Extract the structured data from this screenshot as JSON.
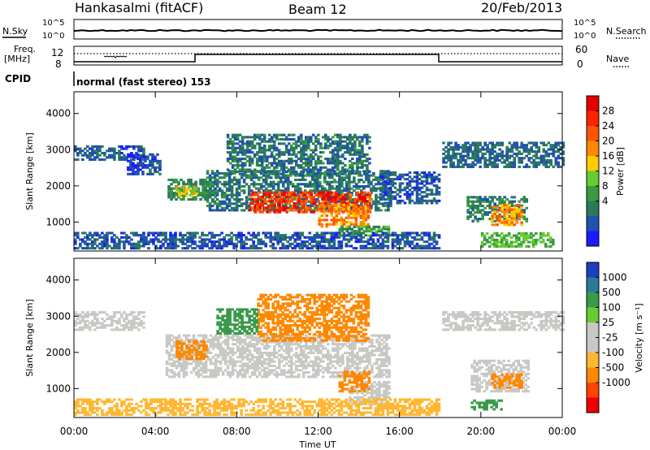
{
  "header": {
    "station": "Hankasalmi (fitACF)",
    "beam": "Beam 12",
    "date": "20/Feb/2013"
  },
  "strips": {
    "nsky_label": "N.Sky",
    "nsearch_label": "N.Search",
    "freq_label_line1": "Freq.",
    "freq_label_line2": "[MHz]",
    "nave_label": "Nave",
    "cpid_label": "CPID",
    "cpid_value": "normal (fast stereo) 153",
    "noise_ticks": [
      "10^5",
      "10^0"
    ],
    "freq_ticks": [
      "12",
      "8"
    ],
    "nave_ticks": [
      "60",
      "0"
    ]
  },
  "colors": {
    "power_scale": [
      "#1a1aff",
      "#2050b0",
      "#2a7a5a",
      "#3a9a40",
      "#66cc33",
      "#ffcc00",
      "#ff8800",
      "#ff5500",
      "#ff2200",
      "#e60000"
    ],
    "velocity_scale": [
      "#1b3fbf",
      "#2c7a9a",
      "#3a9a4a",
      "#66cc33",
      "#c8c8c4",
      "#c8c8c4",
      "#ffb733",
      "#ff8800",
      "#ff4400",
      "#ee0000"
    ],
    "ground_scatter": "#c8c8c4"
  },
  "chart_data": [
    {
      "type": "heatmap",
      "panel": "power",
      "ylabel": "Slant Range [km]",
      "xlabel": "Time UT",
      "x_ticks": [
        "00:00",
        "04:00",
        "08:00",
        "12:00",
        "16:00",
        "20:00",
        "00:00"
      ],
      "y_ticks": [
        1000,
        2000,
        3000,
        4000
      ],
      "ylim": [
        200,
        4600
      ],
      "xlim_hours": [
        0,
        24
      ],
      "colorbar_label": "Power [dB]",
      "colorbar_ticks": [
        4,
        8,
        12,
        16,
        20,
        24,
        28
      ],
      "data_gap_hours": [
        17.95,
        18.05
      ],
      "regions": [
        {
          "t0": 0.0,
          "t1": 3.4,
          "r0": 2700,
          "r1": 3100,
          "v": 7
        },
        {
          "t0": 2.6,
          "t1": 4.2,
          "r0": 2300,
          "r1": 2900,
          "v": 6
        },
        {
          "t0": 4.6,
          "t1": 7.0,
          "r0": 1600,
          "r1": 2200,
          "v": 11
        },
        {
          "t0": 5.0,
          "t1": 6.0,
          "r0": 1700,
          "r1": 2000,
          "v": 18
        },
        {
          "t0": 6.5,
          "t1": 15.5,
          "r0": 1300,
          "r1": 2400,
          "v": 9
        },
        {
          "t0": 8.6,
          "t1": 14.5,
          "r0": 1250,
          "r1": 1800,
          "v": 27
        },
        {
          "t0": 12.0,
          "t1": 14.5,
          "r0": 850,
          "r1": 1500,
          "v": 22
        },
        {
          "t0": 13.0,
          "t1": 15.5,
          "r0": 600,
          "r1": 900,
          "v": 12
        },
        {
          "t0": 7.5,
          "t1": 14.5,
          "r0": 2300,
          "r1": 3400,
          "v": 9
        },
        {
          "t0": 15.0,
          "t1": 17.9,
          "r0": 1500,
          "r1": 2400,
          "v": 7
        },
        {
          "t0": 18.1,
          "t1": 24.0,
          "r0": 2500,
          "r1": 3200,
          "v": 8
        },
        {
          "t0": 19.3,
          "t1": 22.3,
          "r0": 1000,
          "r1": 1700,
          "v": 10
        },
        {
          "t0": 20.5,
          "t1": 22.0,
          "r0": 900,
          "r1": 1500,
          "v": 21
        },
        {
          "t0": 20.0,
          "t1": 23.5,
          "r0": 300,
          "r1": 700,
          "v": 14
        },
        {
          "t0": 0.0,
          "t1": 17.9,
          "r0": 250,
          "r1": 700,
          "v": 7
        }
      ]
    },
    {
      "type": "heatmap",
      "panel": "velocity",
      "ylabel": "Slant Range [km]",
      "xlabel": "Time UT",
      "x_ticks": [
        "00:00",
        "04:00",
        "08:00",
        "12:00",
        "16:00",
        "20:00",
        "00:00"
      ],
      "y_ticks": [
        1000,
        2000,
        3000,
        4000
      ],
      "ylim": [
        200,
        4600
      ],
      "xlim_hours": [
        0,
        24
      ],
      "colorbar_label": "Velocity [m s⁻¹]",
      "colorbar_ticks": [
        "1000",
        "500",
        "100",
        "25",
        "-25",
        "-100",
        "-500",
        "-1000"
      ],
      "data_gap_hours": [
        17.95,
        18.05
      ],
      "regions": [
        {
          "t0": 0.0,
          "t1": 3.4,
          "r0": 2600,
          "r1": 3100,
          "v": 0
        },
        {
          "t0": 4.5,
          "t1": 15.5,
          "r0": 1300,
          "r1": 2500,
          "v": 0
        },
        {
          "t0": 13.5,
          "t1": 15.5,
          "r0": 550,
          "r1": 1200,
          "v": 0
        },
        {
          "t0": 18.1,
          "t1": 24.0,
          "r0": 2600,
          "r1": 3100,
          "v": 0
        },
        {
          "t0": 19.5,
          "t1": 22.3,
          "r0": 900,
          "r1": 1800,
          "v": 0
        },
        {
          "t0": 0.0,
          "t1": 17.9,
          "r0": 250,
          "r1": 700,
          "v": -60
        },
        {
          "t0": 5.0,
          "t1": 6.5,
          "r0": 1800,
          "r1": 2300,
          "v": -300
        },
        {
          "t0": 9.0,
          "t1": 14.5,
          "r0": 2300,
          "r1": 3600,
          "v": -300
        },
        {
          "t0": 13.0,
          "t1": 14.5,
          "r0": 900,
          "r1": 1500,
          "v": -300
        },
        {
          "t0": 7.0,
          "t1": 9.0,
          "r0": 2500,
          "r1": 3200,
          "v": 80
        },
        {
          "t0": 20.5,
          "t1": 22.0,
          "r0": 1000,
          "r1": 1400,
          "v": -300
        },
        {
          "t0": 19.5,
          "t1": 21.0,
          "r0": 400,
          "r1": 700,
          "v": 80
        }
      ]
    }
  ]
}
